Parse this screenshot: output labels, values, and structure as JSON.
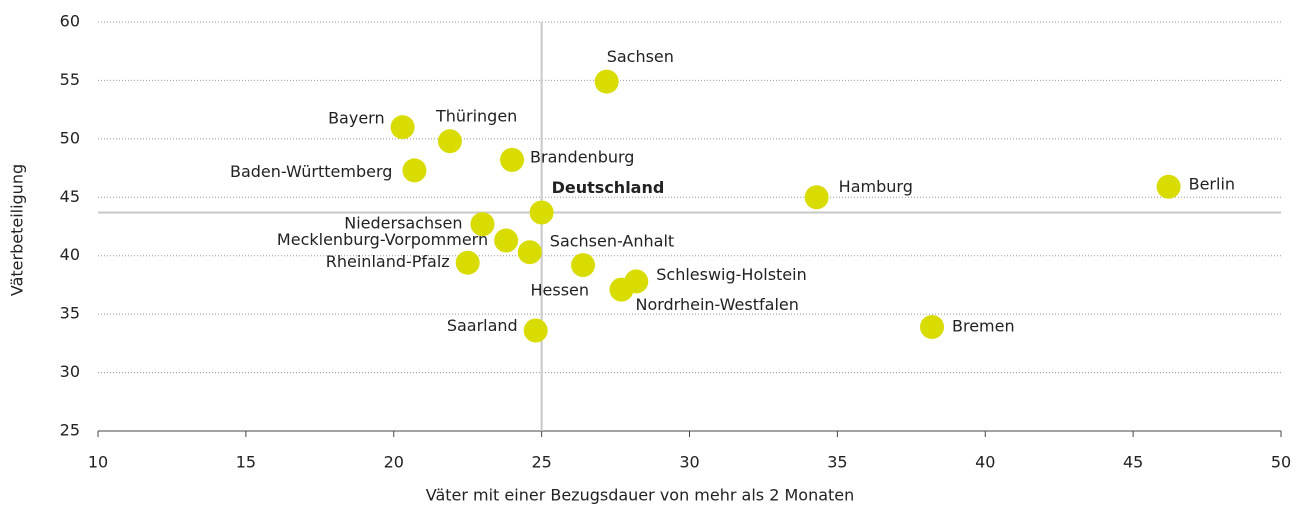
{
  "chart_data": {
    "type": "scatter",
    "x_label": "Väter mit einer Bezugsdauer von mehr als 2 Monaten",
    "y_label": "Väterbeteiligung",
    "points": [
      "Sachsen",
      "Bayern",
      "Thüringen",
      "Brandenburg",
      "Baden-Württemberg",
      "Deutschland",
      "Hamburg",
      "Berlin",
      "Niedersachsen",
      "Mecklenburg-Vorpommern",
      "Sachsen-Anhalt",
      "Rheinland-Pfalz",
      "Hessen",
      "Schleswig-Holstein",
      "Nordrhein-Westfalen",
      "Saarland",
      "Bremen"
    ],
    "x": [
      27.2,
      20.3,
      21.9,
      24.0,
      20.7,
      25.0,
      34.3,
      46.2,
      23.0,
      23.8,
      24.6,
      22.5,
      26.4,
      28.2,
      27.7,
      24.8,
      38.2
    ],
    "values": [
      54.9,
      51.0,
      49.8,
      48.2,
      47.3,
      43.7,
      45.0,
      45.9,
      42.7,
      41.3,
      40.3,
      39.4,
      39.2,
      37.8,
      37.1,
      33.6,
      33.9
    ],
    "color": "#d9dc00",
    "highlight": "Deutschland",
    "xlim": [
      10,
      50
    ],
    "xticks": [
      10,
      15,
      20,
      25,
      30,
      35,
      40,
      45,
      50
    ],
    "ylim": [
      25,
      60
    ],
    "yticks": [
      25,
      30,
      35,
      40,
      45,
      50,
      55,
      60
    ],
    "grid": true
  }
}
